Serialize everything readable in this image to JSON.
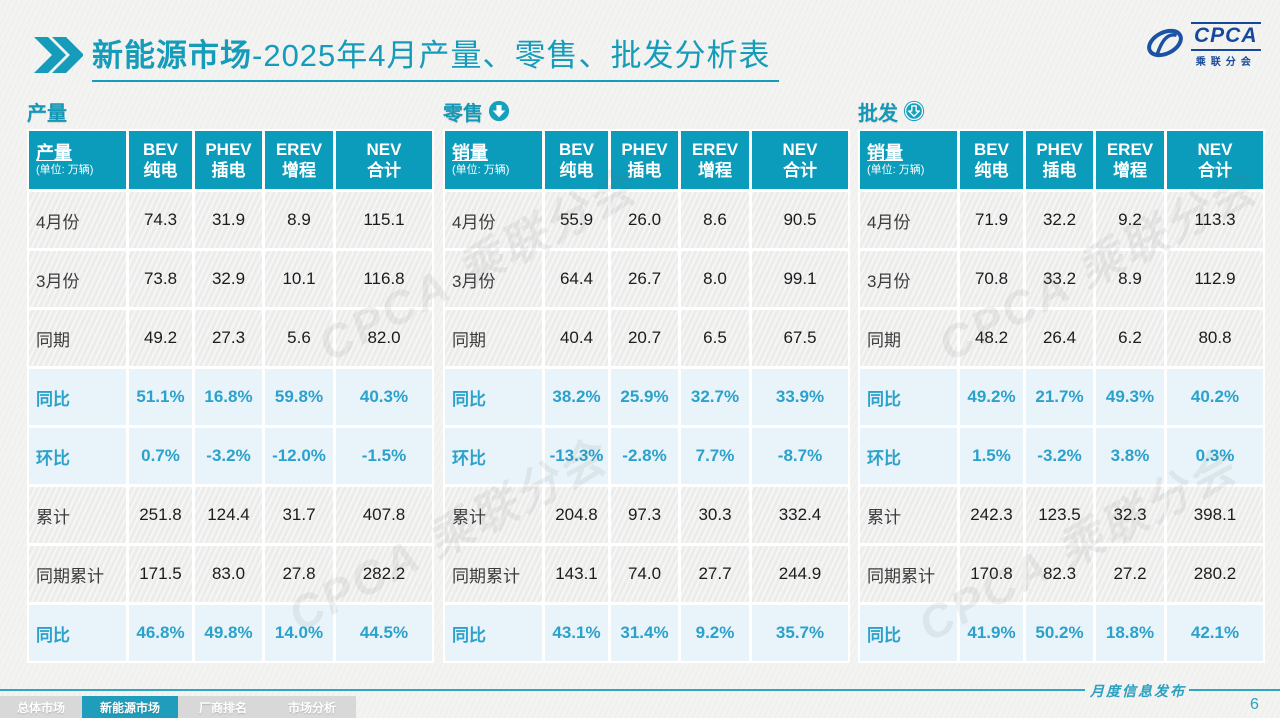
{
  "page": {
    "title_bold": "新能源市场",
    "title_rest": "-2025年4月产量、零售、批发分析表",
    "footer_note": "月度信息发布",
    "page_number": "6"
  },
  "logo": {
    "name": "CPCA",
    "sub": "乘联分会"
  },
  "colors": {
    "accent_teal": "#0A9CBA",
    "percent_text": "#2BA1CC",
    "percent_row_bg": "#E8F4F9",
    "title_teal": "#149CBA",
    "logo_navy": "#16489B",
    "footer_line": "#2FA6C2",
    "inactive_tab": "#D8D8D8"
  },
  "tables": [
    {
      "section": "产量",
      "arrow_icon": "none",
      "header": {
        "label": "产量",
        "note": "(单位: 万辆)"
      },
      "columns": [
        {
          "line1": "BEV",
          "line2": "纯电"
        },
        {
          "line1": "PHEV",
          "line2": "插电"
        },
        {
          "line1": "EREV",
          "line2": "增程"
        },
        {
          "line1": "NEV",
          "line2": "合计"
        }
      ],
      "rows": [
        {
          "label": "4月份",
          "type": "normal",
          "values": [
            "74.3",
            "31.9",
            "8.9",
            "115.1"
          ]
        },
        {
          "label": "3月份",
          "type": "normal",
          "values": [
            "73.8",
            "32.9",
            "10.1",
            "116.8"
          ]
        },
        {
          "label": "同期",
          "type": "normal",
          "values": [
            "49.2",
            "27.3",
            "5.6",
            "82.0"
          ]
        },
        {
          "label": "同比",
          "type": "percent",
          "values": [
            "51.1%",
            "16.8%",
            "59.8%",
            "40.3%"
          ]
        },
        {
          "label": "环比",
          "type": "percent",
          "values": [
            "0.7%",
            "-3.2%",
            "-12.0%",
            "-1.5%"
          ]
        },
        {
          "label": "累计",
          "type": "normal",
          "values": [
            "251.8",
            "124.4",
            "31.7",
            "407.8"
          ]
        },
        {
          "label": "同期累计",
          "type": "normal",
          "values": [
            "171.5",
            "83.0",
            "27.8",
            "282.2"
          ]
        },
        {
          "label": "同比",
          "type": "percent",
          "values": [
            "46.8%",
            "49.8%",
            "14.0%",
            "44.5%"
          ]
        }
      ]
    },
    {
      "section": "零售",
      "arrow_icon": "down-arrow-solid-circle",
      "header": {
        "label": "销量",
        "note": "(单位: 万辆)"
      },
      "columns": [
        {
          "line1": "BEV",
          "line2": "纯电"
        },
        {
          "line1": "PHEV",
          "line2": "插电"
        },
        {
          "line1": "EREV",
          "line2": "增程"
        },
        {
          "line1": "NEV",
          "line2": "合计"
        }
      ],
      "rows": [
        {
          "label": "4月份",
          "type": "normal",
          "values": [
            "55.9",
            "26.0",
            "8.6",
            "90.5"
          ]
        },
        {
          "label": "3月份",
          "type": "normal",
          "values": [
            "64.4",
            "26.7",
            "8.0",
            "99.1"
          ]
        },
        {
          "label": "同期",
          "type": "normal",
          "values": [
            "40.4",
            "20.7",
            "6.5",
            "67.5"
          ]
        },
        {
          "label": "同比",
          "type": "percent",
          "values": [
            "38.2%",
            "25.9%",
            "32.7%",
            "33.9%"
          ]
        },
        {
          "label": "环比",
          "type": "percent",
          "values": [
            "-13.3%",
            "-2.8%",
            "7.7%",
            "-8.7%"
          ]
        },
        {
          "label": "累计",
          "type": "normal",
          "values": [
            "204.8",
            "97.3",
            "30.3",
            "332.4"
          ]
        },
        {
          "label": "同期累计",
          "type": "normal",
          "values": [
            "143.1",
            "74.0",
            "27.7",
            "244.9"
          ]
        },
        {
          "label": "同比",
          "type": "percent",
          "values": [
            "43.1%",
            "31.4%",
            "9.2%",
            "35.7%"
          ]
        }
      ]
    },
    {
      "section": "批发",
      "arrow_icon": "down-arrow-outline-circle",
      "header": {
        "label": "销量",
        "note": "(单位: 万辆)"
      },
      "columns": [
        {
          "line1": "BEV",
          "line2": "纯电"
        },
        {
          "line1": "PHEV",
          "line2": "插电"
        },
        {
          "line1": "EREV",
          "line2": "增程"
        },
        {
          "line1": "NEV",
          "line2": "合计"
        }
      ],
      "rows": [
        {
          "label": "4月份",
          "type": "normal",
          "values": [
            "71.9",
            "32.2",
            "9.2",
            "113.3"
          ]
        },
        {
          "label": "3月份",
          "type": "normal",
          "values": [
            "70.8",
            "33.2",
            "8.9",
            "112.9"
          ]
        },
        {
          "label": "同期",
          "type": "normal",
          "values": [
            "48.2",
            "26.4",
            "6.2",
            "80.8"
          ]
        },
        {
          "label": "同比",
          "type": "percent",
          "values": [
            "49.2%",
            "21.7%",
            "49.3%",
            "40.2%"
          ]
        },
        {
          "label": "环比",
          "type": "percent",
          "values": [
            "1.5%",
            "-3.2%",
            "3.8%",
            "0.3%"
          ]
        },
        {
          "label": "累计",
          "type": "normal",
          "values": [
            "242.3",
            "123.5",
            "32.3",
            "398.1"
          ]
        },
        {
          "label": "同期累计",
          "type": "normal",
          "values": [
            "170.8",
            "82.3",
            "27.2",
            "280.2"
          ]
        },
        {
          "label": "同比",
          "type": "percent",
          "values": [
            "41.9%",
            "50.2%",
            "18.8%",
            "42.1%"
          ]
        }
      ]
    }
  ],
  "footer": {
    "tabs": [
      {
        "label": "总体市场",
        "active": false
      },
      {
        "label": "新能源市场",
        "active": true
      },
      {
        "label": "厂商排名",
        "active": false
      },
      {
        "label": "市场分析",
        "active": false
      }
    ]
  },
  "watermark_text": "CPCA 乘联分会"
}
